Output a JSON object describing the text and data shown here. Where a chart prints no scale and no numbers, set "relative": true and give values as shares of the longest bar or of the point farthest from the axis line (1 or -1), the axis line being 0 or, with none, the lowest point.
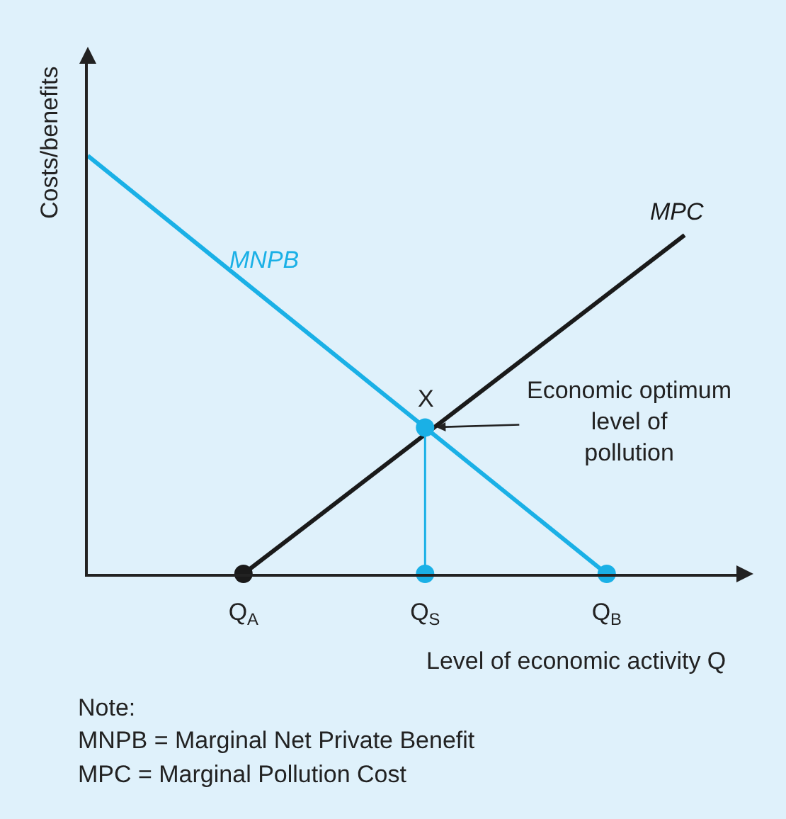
{
  "chart_data": {
    "type": "line",
    "relative": true,
    "xlabel": "Level of economic activity Q",
    "ylabel": "Costs/benefits",
    "categories": [
      null,
      null,
      null,
      null,
      null,
      null,
      "Q$_{A}$",
      null,
      null,
      null,
      null,
      null,
      null,
      "Q$_{S}$",
      null,
      null,
      null,
      null,
      null,
      null,
      "Q$_{B}$",
      null,
      null,
      null,
      null,
      null
    ],
    "grid": false,
    "legend": false,
    "tick_labels": "x",
    "series": [
      {
        "name": "MNPB",
        "color": "#1ab0e6",
        "values": [
          1,
          null,
          null,
          null,
          null,
          null,
          null,
          null,
          null,
          null,
          null,
          null,
          null,
          null,
          null,
          null,
          null,
          null,
          null,
          null,
          0,
          null,
          null,
          null,
          null,
          null
        ],
        "marker": "none",
        "line_style": "solid"
      },
      {
        "name": "MPC",
        "color": "#1a1a1a",
        "values": [
          null,
          null,
          null,
          null,
          null,
          null,
          0,
          null,
          null,
          null,
          null,
          null,
          null,
          null,
          null,
          null,
          null,
          null,
          null,
          null,
          null,
          null,
          null,
          0.81,
          null,
          null
        ],
        "marker": "none",
        "line_style": "solid"
      },
      {
        "type": "lollipop",
        "color": "#1ab0e6",
        "values": [
          null,
          null,
          null,
          null,
          null,
          null,
          null,
          null,
          null,
          null,
          null,
          null,
          null,
          0.35,
          null,
          null,
          null,
          null,
          null,
          null,
          null,
          null,
          null,
          null,
          null,
          null
        ],
        "marker": "circle"
      },
      {
        "type": "scatter",
        "colors": [
          null,
          null,
          null,
          null,
          null,
          null,
          "#1a1a1a",
          null,
          null,
          null,
          null,
          null,
          null,
          "#1ab0e6",
          null,
          null,
          null,
          null,
          null,
          null,
          "#1ab0e6",
          null,
          null,
          null,
          null,
          null
        ],
        "values": [
          null,
          null,
          null,
          null,
          null,
          null,
          0,
          null,
          null,
          null,
          null,
          null,
          null,
          0,
          null,
          null,
          null,
          null,
          null,
          null,
          0,
          null,
          null,
          null,
          null,
          null
        ],
        "marker": "circle"
      }
    ],
    "annotations": [
      {
        "text": "X",
        "x": "Q$_{S}$",
        "y": 0.35
      },
      "Economic optimum level of pollution",
      "Note:",
      "MNPB = Marginal Net Private Benefit",
      "MPC = Marginal Pollution Cost"
    ]
  }
}
